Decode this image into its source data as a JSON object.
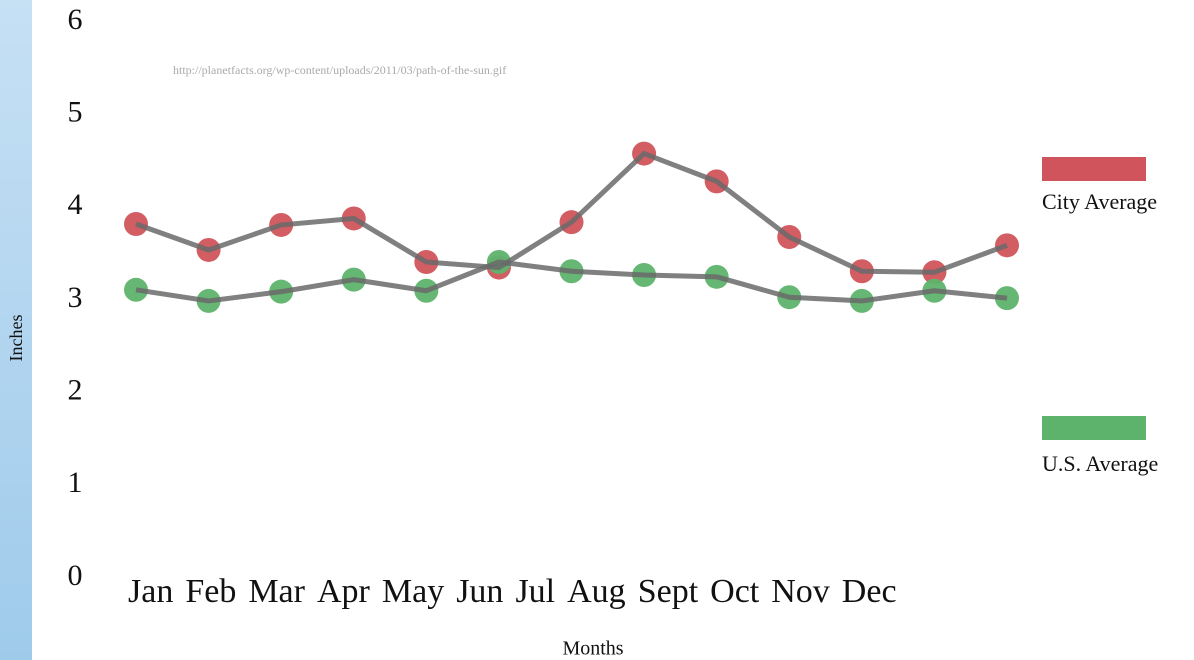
{
  "chart_data": {
    "type": "line",
    "source": "http://planetfacts.org/wp-content/uploads/2011/03/path-of-the-sun.gif",
    "xlabel": "Months",
    "ylabel": "Inches",
    "categories": [
      "Jan",
      "Feb",
      "Mar",
      "Apr",
      "May",
      "Jun",
      "Jul",
      "Aug",
      "Sept",
      "Oct",
      "Nov",
      "Dec",
      null
    ],
    "series": [
      {
        "name": "City Average",
        "color": "#d0545b",
        "values": [
          3.82,
          3.54,
          3.81,
          3.88,
          3.41,
          3.35,
          3.84,
          4.58,
          4.28,
          3.68,
          3.31,
          3.3,
          3.59
        ]
      },
      {
        "name": "U.S. Average",
        "color": "#5db36b",
        "values": [
          3.11,
          2.99,
          3.09,
          3.22,
          3.1,
          3.41,
          3.31,
          3.27,
          3.25,
          3.03,
          2.99,
          3.1,
          3.02
        ]
      }
    ],
    "ylim": [
      0,
      6
    ],
    "yticks": [
      0,
      1,
      2,
      3,
      4,
      5,
      6
    ],
    "grid": false
  }
}
